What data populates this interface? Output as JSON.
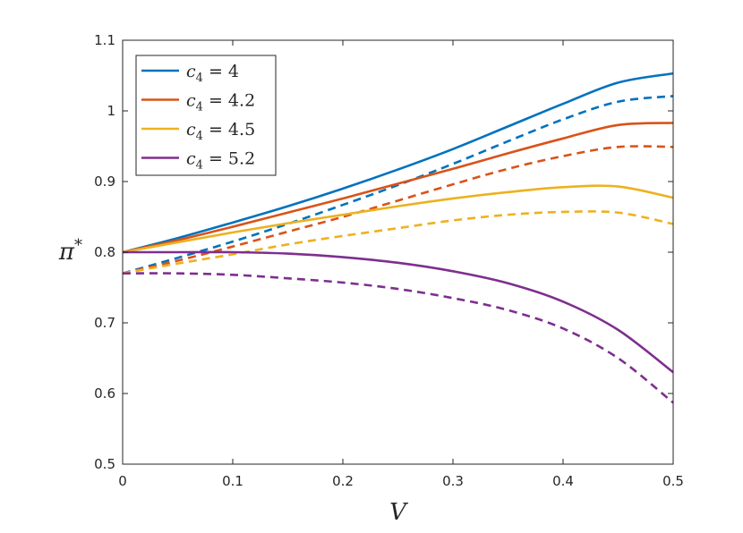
{
  "chart_data": {
    "type": "line",
    "title": "",
    "xlabel": "V",
    "ylabel": "π*",
    "xlim": [
      0,
      0.5
    ],
    "ylim": [
      0.5,
      1.1
    ],
    "xticks": [
      "0",
      "0.1",
      "0.2",
      "0.3",
      "0.4",
      "0.5"
    ],
    "yticks": [
      "0.5",
      "0.6",
      "0.7",
      "0.8",
      "0.9",
      "1",
      "1.1"
    ],
    "grid": false,
    "legend_position": "top-left",
    "x": [
      0,
      0.05,
      0.1,
      0.15,
      0.2,
      0.25,
      0.3,
      0.35,
      0.4,
      0.45,
      0.5
    ],
    "series": [
      {
        "name": "c₄ = 4",
        "legend_label": "c4 = 4",
        "color": "#0072BD",
        "solid": [
          0.8,
          0.82,
          0.842,
          0.865,
          0.89,
          0.917,
          0.946,
          0.978,
          1.01,
          1.04,
          1.053
        ],
        "dashed": [
          0.77,
          0.792,
          0.815,
          0.84,
          0.867,
          0.895,
          0.925,
          0.957,
          0.988,
          1.013,
          1.021
        ]
      },
      {
        "name": "c₄ = 4.2",
        "legend_label": "c4 = 4.2",
        "color": "#D95319",
        "solid": [
          0.8,
          0.817,
          0.836,
          0.856,
          0.876,
          0.897,
          0.918,
          0.94,
          0.961,
          0.98,
          0.983
        ],
        "dashed": [
          0.77,
          0.788,
          0.808,
          0.829,
          0.85,
          0.873,
          0.896,
          0.918,
          0.936,
          0.949,
          0.949
        ]
      },
      {
        "name": "c₄ = 4.5",
        "legend_label": "c4 = 4.5",
        "color": "#EDB120",
        "solid": [
          0.8,
          0.814,
          0.828,
          0.841,
          0.853,
          0.865,
          0.876,
          0.885,
          0.892,
          0.893,
          0.877
        ],
        "dashed": [
          0.77,
          0.784,
          0.797,
          0.811,
          0.823,
          0.834,
          0.845,
          0.853,
          0.857,
          0.856,
          0.84
        ]
      },
      {
        "name": "c₄ = 5.2",
        "legend_label": "c4 = 5.2",
        "color": "#7E2F8E",
        "solid": [
          0.8,
          0.8,
          0.8,
          0.798,
          0.793,
          0.785,
          0.773,
          0.756,
          0.73,
          0.69,
          0.63
        ],
        "dashed": [
          0.77,
          0.77,
          0.768,
          0.763,
          0.757,
          0.748,
          0.735,
          0.718,
          0.692,
          0.65,
          0.587
        ]
      }
    ]
  }
}
